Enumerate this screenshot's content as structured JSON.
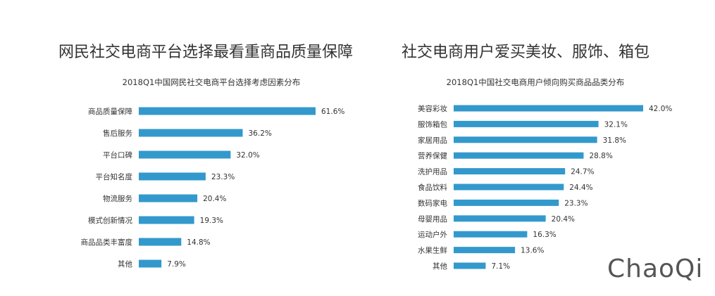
{
  "headlines": {
    "left": "网民社交电商平台选择最看重商品质量保障",
    "right": "社交电商用户爱买美妆、服饰、箱包"
  },
  "watermark": "ChaoQi",
  "chart_data": [
    {
      "type": "bar",
      "orientation": "horizontal",
      "title": "2018Q1中国网民社交电商平台选择考虑因素分布",
      "categories": [
        "商品质量保障",
        "售后服务",
        "平台口碑",
        "平台知名度",
        "物流服务",
        "模式创新情况",
        "商品品类丰富度",
        "其他"
      ],
      "values": [
        61.6,
        36.2,
        32.0,
        23.3,
        20.4,
        19.3,
        14.8,
        7.9
      ],
      "labels": [
        "61.6%",
        "36.2%",
        "32.0%",
        "23.3%",
        "20.4%",
        "19.3%",
        "14.8%",
        "7.9%"
      ],
      "unit": "%",
      "color": "#3399cc",
      "grid": false
    },
    {
      "type": "bar",
      "orientation": "horizontal",
      "title": "2018Q1中国社交电商用户倾向购买商品品类分布",
      "categories": [
        "美容彩妆",
        "服饰箱包",
        "家居用品",
        "营养保健",
        "洗护用品",
        "食品饮料",
        "数码家电",
        "母婴用品",
        "运动户外",
        "水果生鲜",
        "其他"
      ],
      "values": [
        42.0,
        32.1,
        31.8,
        28.8,
        24.7,
        24.4,
        23.3,
        20.4,
        16.3,
        13.6,
        7.1
      ],
      "labels": [
        "42.0%",
        "32.1%",
        "31.8%",
        "28.8%",
        "24.7%",
        "24.4%",
        "23.3%",
        "20.4%",
        "16.3%",
        "13.6%",
        "7.1%"
      ],
      "unit": "%",
      "color": "#3399cc",
      "grid": false
    }
  ]
}
